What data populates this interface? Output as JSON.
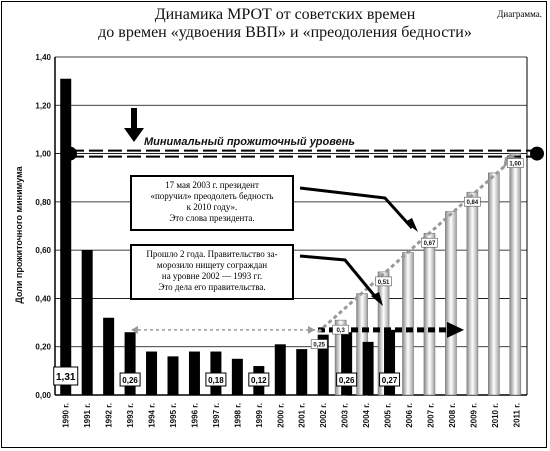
{
  "title_line1": "Динамика МРОТ от советских времен",
  "title_line2": "до времен «удвоения ВВП» и «преодоления бедности»",
  "corner_label": "Диаграмма.",
  "chart_data": {
    "type": "bar",
    "ylabel": "Доли прожиточного минимума",
    "ylim": [
      0,
      1.4
    ],
    "yticks": [
      "0,00",
      "0,20",
      "0,40",
      "0,60",
      "0,80",
      "1,00",
      "1,20",
      "1,40"
    ],
    "grid": true,
    "categories": [
      "1990 г.",
      "1991 г.",
      "1992 г.",
      "1993 г.",
      "1994 г.",
      "1995 г.",
      "1996 г.",
      "1997 г.",
      "1998 г.",
      "1999 г.",
      "2000 г.",
      "2001 г.",
      "2002 г.",
      "2003 г.",
      "2004 г.",
      "2005 г.",
      "2006 г.",
      "2007 г.",
      "2008 г.",
      "2009 г.",
      "2010 г.",
      "2011 г."
    ],
    "actual": [
      1.31,
      0.6,
      0.32,
      0.26,
      0.18,
      0.16,
      0.18,
      0.18,
      0.15,
      0.12,
      0.21,
      0.19,
      0.25,
      0.26,
      0.22,
      0.27,
      null,
      null,
      null,
      null,
      null,
      null
    ],
    "projected": [
      null,
      null,
      null,
      null,
      null,
      null,
      null,
      null,
      null,
      null,
      null,
      null,
      null,
      0.31,
      0.42,
      0.51,
      0.59,
      0.67,
      0.76,
      0.84,
      0.92,
      1.0
    ],
    "data_labels": [
      {
        "index": 0,
        "text": "1,31"
      },
      {
        "index": 3,
        "text": "0,26"
      },
      {
        "index": 7,
        "text": "0,18"
      },
      {
        "index": 9,
        "text": "0,12"
      },
      {
        "index": 13,
        "text": "0,26"
      },
      {
        "index": 15,
        "text": "0,27"
      }
    ],
    "projected_labels": [
      {
        "index": 12,
        "text": "0,25"
      },
      {
        "index": 13,
        "text": "0,3"
      },
      {
        "index": 15,
        "text": "0,51"
      },
      {
        "index": 17,
        "text": "0,67"
      },
      {
        "index": 19,
        "text": "0,84"
      },
      {
        "index": 21,
        "text": "1,00"
      }
    ],
    "subsistence_level": 1.0,
    "subsistence_label": "Минимальный прожиточный уровень",
    "stagnation_level": 0.27
  },
  "notes": {
    "note1": [
      "17 мая 2003 г. президент",
      "«поручил» преодолеть бедность",
      "к 2010 году».",
      "Это слова президента."
    ],
    "note2": [
      "Прошло 2 года. Правительство за-",
      "морозило нищету сограждан",
      "на уровне 2002 — 1993 гг.",
      "Это дела его правительства."
    ]
  }
}
